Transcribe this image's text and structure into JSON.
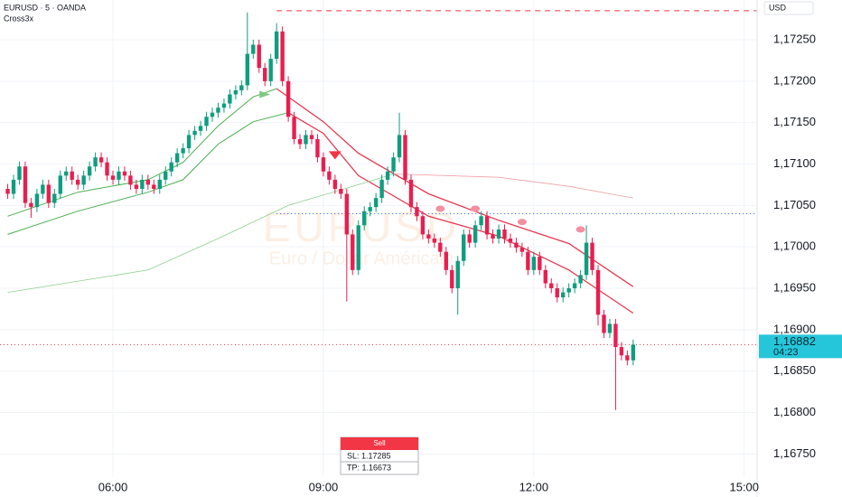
{
  "chart_data": {
    "type": "candlestick",
    "title": "EURUSD · 5 · OANDA",
    "subtitle": "Cross3x",
    "currency": "USD",
    "watermark": "EURUSD",
    "watermark_subtitle": "Euro / Dollar Américain",
    "up_color": "#0f9d7f",
    "down_color": "#e91e4f",
    "grid": true,
    "xlim": [
      263.4,
      911
    ],
    "ylim": [
      1.16722,
      1.17298
    ],
    "xticks": [
      {
        "value": 360,
        "label": "06:00"
      },
      {
        "value": 540,
        "label": "09:00"
      },
      {
        "value": 720,
        "label": "12:00"
      },
      {
        "value": 900,
        "label": "15:00"
      }
    ],
    "yticks": [
      {
        "value": 1.1675,
        "label": "1,16750"
      },
      {
        "value": 1.168,
        "label": "1,16800"
      },
      {
        "value": 1.1685,
        "label": "1,16850"
      },
      {
        "value": 1.169,
        "label": "1,16900"
      },
      {
        "value": 1.1695,
        "label": "1,16950"
      },
      {
        "value": 1.17,
        "label": "1,17000"
      },
      {
        "value": 1.1705,
        "label": "1,17050"
      },
      {
        "value": 1.171,
        "label": "1,17100"
      },
      {
        "value": 1.1715,
        "label": "1,17150"
      },
      {
        "value": 1.172,
        "label": "1,17200"
      },
      {
        "value": 1.1725,
        "label": "1,17250"
      }
    ],
    "last_price": {
      "value": 1.16882,
      "label": "1,16882"
    },
    "countdown": "04:23",
    "last_price_color": "#26c6da",
    "x": [
      270,
      275,
      280,
      285,
      290,
      295,
      300,
      305,
      310,
      315,
      320,
      325,
      330,
      335,
      340,
      345,
      350,
      355,
      360,
      365,
      370,
      375,
      380,
      385,
      390,
      395,
      400,
      405,
      410,
      415,
      420,
      425,
      430,
      435,
      440,
      445,
      450,
      455,
      460,
      465,
      470,
      475,
      480,
      485,
      490,
      495,
      500,
      505,
      510,
      515,
      520,
      525,
      530,
      535,
      540,
      545,
      550,
      555,
      560,
      565,
      570,
      575,
      580,
      585,
      590,
      595,
      600,
      605,
      610,
      615,
      620,
      625,
      630,
      635,
      640,
      645,
      650,
      655,
      660,
      665,
      670,
      675,
      680,
      685,
      690,
      695,
      700,
      705,
      710,
      715,
      720,
      725,
      730,
      735,
      740,
      745,
      750,
      755,
      760,
      765,
      770,
      775,
      780,
      785,
      790,
      795,
      800,
      805
    ],
    "open": [
      1.1707,
      1.17064,
      1.17081,
      1.17097,
      1.17053,
      1.17048,
      1.17064,
      1.17075,
      1.17053,
      1.17064,
      1.17086,
      1.17091,
      1.17081,
      1.17075,
      1.17086,
      1.17097,
      1.17108,
      1.17102,
      1.17086,
      1.17081,
      1.17091,
      1.17086,
      1.17075,
      1.1707,
      1.17081,
      1.17075,
      1.1707,
      1.17081,
      1.17091,
      1.17102,
      1.17113,
      1.17119,
      1.17135,
      1.1714,
      1.17146,
      1.17157,
      1.17162,
      1.17168,
      1.17173,
      1.17184,
      1.17189,
      1.17195,
      1.17233,
      1.17244,
      1.17216,
      1.172,
      1.17227,
      1.1726,
      1.172,
      1.17157,
      1.1713,
      1.17124,
      1.17135,
      1.1713,
      1.17108,
      1.17091,
      1.17081,
      1.1707,
      1.17064,
      1.17015,
      1.16972,
      1.17026,
      1.17043,
      1.17048,
      1.17059,
      1.17081,
      1.17091,
      1.17108,
      1.17135,
      1.17081,
      1.17048,
      1.17037,
      1.17015,
      1.1701,
      1.17005,
      1.16994,
      1.16972,
      1.1695,
      1.16983,
      1.17015,
      1.17005,
      1.17026,
      1.17037,
      1.17015,
      1.1701,
      1.17021,
      1.1701,
      1.17005,
      1.16999,
      1.16994,
      1.16972,
      1.16988,
      1.16972,
      1.16956,
      1.1695,
      1.16939,
      1.16945,
      1.1695,
      1.16956,
      1.16966,
      1.17005,
      1.16972,
      1.16918,
      1.16896,
      1.16907,
      1.16879,
      1.16869,
      1.16863
    ],
    "high": [
      1.17076,
      1.17087,
      1.17103,
      1.17103,
      1.17059,
      1.1707,
      1.17081,
      1.17081,
      1.1707,
      1.17092,
      1.17097,
      1.17097,
      1.17087,
      1.17092,
      1.17103,
      1.17114,
      1.17114,
      1.17108,
      1.17092,
      1.17097,
      1.17097,
      1.17092,
      1.17081,
      1.17087,
      1.17087,
      1.17081,
      1.17087,
      1.17097,
      1.17108,
      1.17119,
      1.17125,
      1.17141,
      1.17146,
      1.17152,
      1.17163,
      1.17168,
      1.17174,
      1.17179,
      1.1719,
      1.17195,
      1.17201,
      1.17283,
      1.1725,
      1.1725,
      1.17222,
      1.17233,
      1.1727,
      1.17266,
      1.17206,
      1.17163,
      1.17136,
      1.17141,
      1.17141,
      1.17136,
      1.17114,
      1.17097,
      1.17087,
      1.17076,
      1.1707,
      1.17021,
      1.17032,
      1.17049,
      1.17054,
      1.17065,
      1.17087,
      1.17097,
      1.17114,
      1.17162,
      1.17141,
      1.17087,
      1.17054,
      1.17043,
      1.17021,
      1.17016,
      1.17011,
      1.17,
      1.16978,
      1.16989,
      1.17021,
      1.17021,
      1.17032,
      1.17043,
      1.17043,
      1.17021,
      1.17027,
      1.17027,
      1.17016,
      1.17011,
      1.17005,
      1.17,
      1.16994,
      1.16994,
      1.16978,
      1.16962,
      1.16956,
      1.16951,
      1.16956,
      1.16962,
      1.16972,
      1.17026,
      1.17011,
      1.16978,
      1.16924,
      1.16913,
      1.16913,
      1.16885,
      1.16875,
      1.16888
    ],
    "low": [
      1.17058,
      1.17058,
      1.17075,
      1.17047,
      1.17035,
      1.17042,
      1.17058,
      1.17047,
      1.17047,
      1.17058,
      1.1708,
      1.17075,
      1.17069,
      1.17069,
      1.1708,
      1.17091,
      1.17096,
      1.1708,
      1.17075,
      1.17075,
      1.1708,
      1.17069,
      1.17064,
      1.17064,
      1.17069,
      1.17064,
      1.17064,
      1.17075,
      1.17085,
      1.17096,
      1.17107,
      1.17113,
      1.17129,
      1.17134,
      1.1714,
      1.17151,
      1.17156,
      1.17162,
      1.17167,
      1.17178,
      1.17183,
      1.17189,
      1.17227,
      1.1721,
      1.17194,
      1.17194,
      1.17221,
      1.17194,
      1.17151,
      1.17124,
      1.17118,
      1.17118,
      1.17124,
      1.17102,
      1.17085,
      1.17075,
      1.17064,
      1.17058,
      1.16934,
      1.16966,
      1.16966,
      1.1702,
      1.17037,
      1.17042,
      1.17053,
      1.17075,
      1.17085,
      1.17102,
      1.17075,
      1.17042,
      1.17031,
      1.17009,
      1.17004,
      1.16999,
      1.16988,
      1.16966,
      1.16944,
      1.16918,
      1.16977,
      1.16999,
      1.16999,
      1.1702,
      1.17009,
      1.17004,
      1.17004,
      1.17004,
      1.16999,
      1.16993,
      1.16988,
      1.16966,
      1.16966,
      1.16966,
      1.1695,
      1.16944,
      1.16933,
      1.16933,
      1.16939,
      1.16944,
      1.1695,
      1.1696,
      1.16966,
      1.16905,
      1.1689,
      1.1689,
      1.16803,
      1.16863,
      1.16857,
      1.16857
    ],
    "close": [
      1.17064,
      1.17081,
      1.17097,
      1.17053,
      1.17048,
      1.17064,
      1.17075,
      1.17053,
      1.17064,
      1.17086,
      1.17091,
      1.17081,
      1.17075,
      1.17086,
      1.17097,
      1.17108,
      1.17102,
      1.17086,
      1.17081,
      1.17091,
      1.17086,
      1.17075,
      1.1707,
      1.17081,
      1.17075,
      1.1707,
      1.17081,
      1.17091,
      1.17102,
      1.17113,
      1.17119,
      1.17135,
      1.1714,
      1.17146,
      1.17157,
      1.17162,
      1.17168,
      1.17173,
      1.17184,
      1.17189,
      1.17195,
      1.17233,
      1.17244,
      1.17216,
      1.172,
      1.17227,
      1.1726,
      1.172,
      1.17157,
      1.1713,
      1.17124,
      1.17135,
      1.1713,
      1.17108,
      1.17091,
      1.17081,
      1.1707,
      1.17064,
      1.17015,
      1.16972,
      1.17026,
      1.17043,
      1.17048,
      1.17059,
      1.17081,
      1.17091,
      1.17108,
      1.17135,
      1.17081,
      1.17048,
      1.17037,
      1.17015,
      1.1701,
      1.17005,
      1.16994,
      1.16972,
      1.1695,
      1.16983,
      1.17015,
      1.17005,
      1.17026,
      1.17037,
      1.17015,
      1.1701,
      1.17021,
      1.1701,
      1.17005,
      1.16999,
      1.16994,
      1.16972,
      1.16988,
      1.16972,
      1.16956,
      1.1695,
      1.16939,
      1.16945,
      1.1695,
      1.16956,
      1.16966,
      1.17005,
      1.16972,
      1.16918,
      1.16896,
      1.16907,
      1.16879,
      1.16869,
      1.16863,
      1.16882
    ],
    "lines": [
      {
        "color": "#4caf50",
        "width": 1,
        "x": [
          270,
          330,
          390,
          420,
          450,
          480,
          500
        ],
        "values": [
          1.17037,
          1.17066,
          1.17081,
          1.17102,
          1.17146,
          1.17181,
          1.17191
        ]
      },
      {
        "color": "#e53950",
        "width": 1.3,
        "x": [
          500,
          540,
          570,
          630,
          690,
          750,
          805
        ],
        "values": [
          1.17191,
          1.17151,
          1.17113,
          1.17064,
          1.17032,
          1.17004,
          1.16952
        ]
      },
      {
        "color": "#4caf50",
        "width": 1,
        "x": [
          270,
          330,
          390,
          420,
          450,
          480,
          510
        ],
        "values": [
          1.17015,
          1.17043,
          1.17066,
          1.17081,
          1.17124,
          1.17151,
          1.17162
        ]
      },
      {
        "color": "#e53950",
        "width": 1.3,
        "x": [
          510,
          540,
          570,
          630,
          690,
          750,
          805
        ],
        "values": [
          1.17162,
          1.17137,
          1.17086,
          1.17037,
          1.17013,
          1.16972,
          1.1692
        ]
      },
      {
        "color": "#8bd08e",
        "width": 0.8,
        "x": [
          270,
          390,
          450,
          510,
          570,
          600
        ],
        "values": [
          1.16945,
          1.16972,
          1.1701,
          1.1705,
          1.17075,
          1.17088
        ]
      },
      {
        "color": "#f0a0a8",
        "width": 0.8,
        "x": [
          600,
          690,
          750,
          805
        ],
        "values": [
          1.17088,
          1.17084,
          1.17073,
          1.17059
        ]
      }
    ],
    "levels": [
      {
        "value": 1.17285,
        "x0": 500,
        "color": "#f23645",
        "dash": "6 5"
      },
      {
        "value": 1.1704,
        "x0": 500,
        "color": "#2962ff",
        "dash": "1 3"
      },
      {
        "value": 1.16882,
        "x0": 263.4,
        "color": "#f23645",
        "dash": "1 3"
      }
    ],
    "markers": [
      {
        "x": 550,
        "value": 1.17111,
        "shape": "triangle-down",
        "color": "#f23645"
      },
      {
        "x": 490,
        "value": 1.17184,
        "shape": "triangle-right",
        "color": "#81c784"
      },
      {
        "x": 640,
        "value": 1.17046,
        "shape": "dot",
        "color": "#f48fa0"
      },
      {
        "x": 670,
        "value": 1.17046,
        "shape": "dot",
        "color": "#f48fa0"
      },
      {
        "x": 710,
        "value": 1.1703,
        "shape": "dot",
        "color": "#f48fa0"
      },
      {
        "x": 760,
        "value": 1.17021,
        "shape": "dot",
        "color": "#f48fa0"
      }
    ],
    "order": {
      "side": "Sell",
      "sl": "SL: 1.17285",
      "tp": "TP: 1.16673"
    }
  }
}
